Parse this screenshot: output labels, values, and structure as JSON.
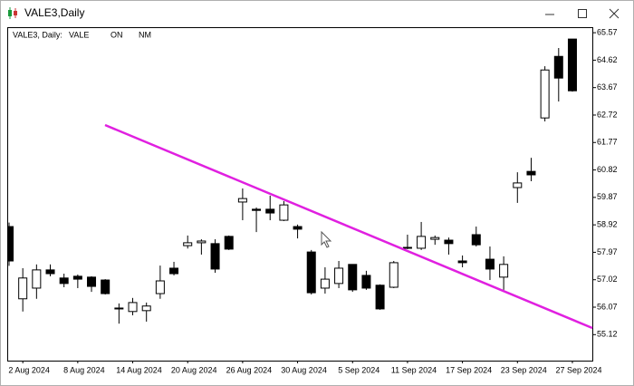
{
  "window": {
    "title": "VALE3,Daily"
  },
  "chart_data": {
    "type": "candlestick",
    "info": [
      "VALE3, Daily:",
      "VALE",
      "ON",
      "NM"
    ],
    "categories": [
      null,
      "2 Aug 2024",
      null,
      null,
      null,
      "8 Aug 2024",
      null,
      null,
      null,
      "14 Aug 2024",
      null,
      null,
      null,
      "20 Aug 2024",
      null,
      null,
      null,
      "26 Aug 2024",
      null,
      null,
      null,
      "30 Aug 2024",
      null,
      null,
      null,
      "5 Sep 2024",
      null,
      null,
      null,
      "11 Sep 2024",
      null,
      null,
      null,
      "17 Sep 2024",
      null,
      null,
      null,
      "23 Sep 2024",
      null,
      null,
      null,
      "27 Sep 2024"
    ],
    "open": [
      58.86,
      56.36,
      56.73,
      57.36,
      57.08,
      57.14,
      57.11,
      57.01,
      56.04,
      55.92,
      55.95,
      56.54,
      57.42,
      58.2,
      58.3,
      58.27,
      58.52,
      59.71,
      59.46,
      59.46,
      59.08,
      58.86,
      57.98,
      56.73,
      56.89,
      57.55,
      57.17,
      56.83,
      56.76,
      58.14,
      58.11,
      58.42,
      58.39,
      57.67,
      58.58,
      57.73,
      57.11,
      60.21,
      60.77,
      62.62,
      64.75,
      65.35
    ],
    "high": [
      59.0,
      57.42,
      57.55,
      57.55,
      57.23,
      57.2,
      57.14,
      57.04,
      56.2,
      56.39,
      56.23,
      57.51,
      57.64,
      58.55,
      58.42,
      58.42,
      58.55,
      60.18,
      59.52,
      59.93,
      59.74,
      58.93,
      58.05,
      57.45,
      57.67,
      57.55,
      57.33,
      56.86,
      57.67,
      58.58,
      59.02,
      58.55,
      58.48,
      57.86,
      58.86,
      58.17,
      57.83,
      60.74,
      61.24,
      64.41,
      65.04,
      65.35
    ],
    "low": [
      57.5,
      55.92,
      56.36,
      57.14,
      56.76,
      56.73,
      56.6,
      56.51,
      55.5,
      55.79,
      55.57,
      56.36,
      57.17,
      58.1,
      57.89,
      57.26,
      58.05,
      59.08,
      58.67,
      59.08,
      59.05,
      58.45,
      56.51,
      56.54,
      56.73,
      56.6,
      56.67,
      55.98,
      56.73,
      58.08,
      58.05,
      58.23,
      57.89,
      57.45,
      58.17,
      57.01,
      56.67,
      59.68,
      60.43,
      62.5,
      63.19,
      63.53
    ],
    "close": [
      57.67,
      57.08,
      57.36,
      57.23,
      56.89,
      57.04,
      56.79,
      56.54,
      56.01,
      56.23,
      56.11,
      56.98,
      57.23,
      58.3,
      58.36,
      57.39,
      58.08,
      59.83,
      59.42,
      59.33,
      59.61,
      58.77,
      56.57,
      57.04,
      57.42,
      56.67,
      56.73,
      56.01,
      57.61,
      58.11,
      58.52,
      58.48,
      58.27,
      57.61,
      58.23,
      57.39,
      57.55,
      60.37,
      60.65,
      64.28,
      64.0,
      63.56
    ],
    "ylim": [
      54.22,
      65.73
    ],
    "yticks": [
      65.57,
      64.62,
      63.67,
      62.72,
      61.77,
      60.82,
      59.87,
      58.92,
      57.97,
      57.02,
      56.07,
      55.12
    ],
    "up_color": "#ffffff",
    "down_color": "#000000"
  }
}
